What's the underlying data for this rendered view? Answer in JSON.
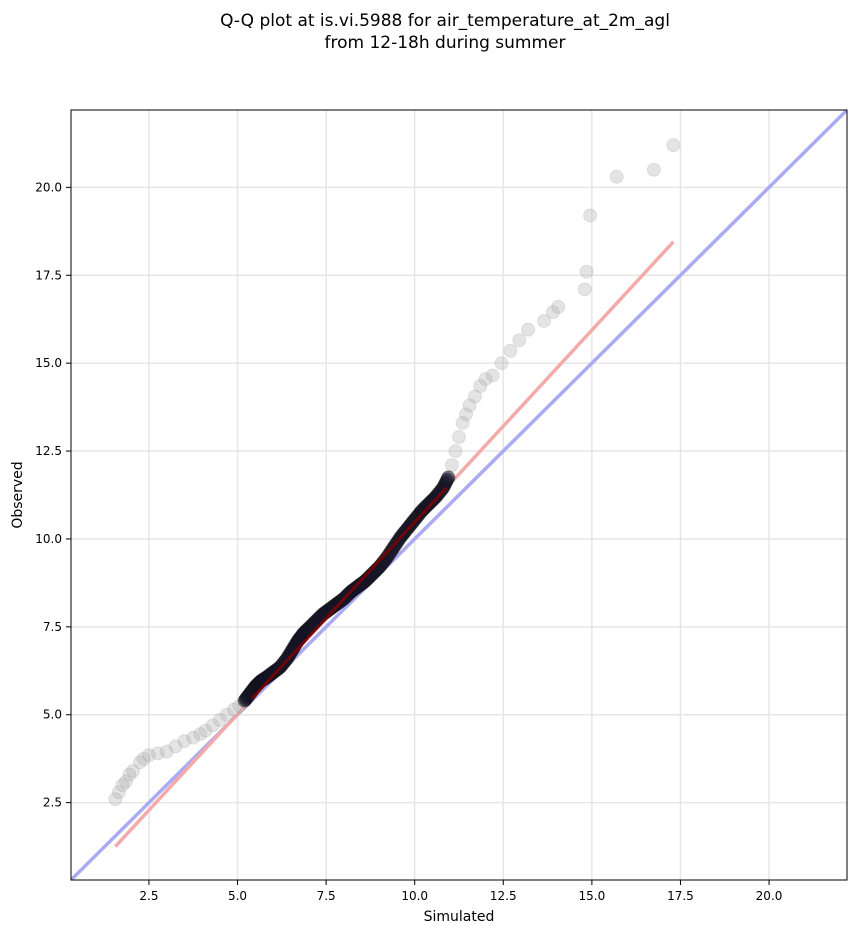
{
  "chart_data": {
    "type": "scatter",
    "title_line1": "Q-Q plot at is.vi.5988 for air_temperature_at_2m_agl",
    "title_line2": "from 12-18h during summer",
    "xlabel": "Simulated",
    "ylabel": "Observed",
    "xlim": [
      0.3,
      22.2
    ],
    "ylim": [
      0.3,
      22.2
    ],
    "xticks": [
      2.5,
      5.0,
      7.5,
      10.0,
      12.5,
      15.0,
      17.5,
      20.0
    ],
    "yticks": [
      2.5,
      5.0,
      7.5,
      10.0,
      12.5,
      15.0,
      17.5,
      20.0
    ],
    "xtick_labels": [
      "2.5",
      "5.0",
      "7.5",
      "10.0",
      "12.5",
      "15.0",
      "17.5",
      "20.0"
    ],
    "ytick_labels": [
      "2.5",
      "5.0",
      "7.5",
      "10.0",
      "12.5",
      "15.0",
      "17.5",
      "20.0"
    ],
    "grid": true,
    "identity_line_color": "#aaaaf5",
    "fit_line_color": "#f5aaaa",
    "fit_line": {
      "x": [
        1.55,
        17.3
      ],
      "y": [
        1.25,
        18.45
      ]
    },
    "identity_line": {
      "x": [
        0.3,
        22.2
      ],
      "y": [
        0.3,
        22.2
      ]
    },
    "qq_points": {
      "x": [
        1.55,
        1.65,
        1.75,
        1.85,
        1.95,
        2.05,
        2.25,
        2.35,
        2.5,
        2.75,
        3.0,
        3.25,
        3.5,
        3.75,
        3.95,
        4.1,
        4.3,
        4.5,
        4.7,
        4.9,
        5.05,
        5.2,
        5.35,
        5.5,
        5.65,
        5.8,
        6.0,
        6.2,
        6.4,
        6.55,
        6.7,
        6.85,
        7.0,
        7.2,
        7.4,
        7.6,
        7.8,
        8.0,
        8.2,
        8.4,
        8.6,
        8.8,
        9.0,
        9.2,
        9.4,
        9.6,
        9.8,
        10.0,
        10.2,
        10.4,
        10.6,
        10.8,
        10.95,
        11.05,
        11.15,
        11.25,
        11.35,
        11.45,
        11.55,
        11.7,
        11.85,
        12.0,
        12.2,
        12.45,
        12.7,
        12.95,
        13.2,
        13.65,
        13.9,
        14.05,
        14.8,
        14.85,
        14.95,
        15.7,
        16.75,
        17.3
      ],
      "y": [
        2.6,
        2.8,
        3.0,
        3.1,
        3.3,
        3.4,
        3.65,
        3.75,
        3.85,
        3.9,
        3.95,
        4.1,
        4.25,
        4.35,
        4.45,
        4.55,
        4.7,
        4.85,
        5.0,
        5.15,
        5.25,
        5.4,
        5.6,
        5.8,
        5.95,
        6.05,
        6.2,
        6.35,
        6.6,
        6.85,
        7.1,
        7.3,
        7.45,
        7.65,
        7.85,
        8.0,
        8.15,
        8.3,
        8.5,
        8.65,
        8.8,
        9.0,
        9.2,
        9.45,
        9.75,
        10.05,
        10.3,
        10.55,
        10.8,
        11.0,
        11.2,
        11.45,
        11.75,
        12.1,
        12.5,
        12.9,
        13.3,
        13.55,
        13.8,
        14.05,
        14.35,
        14.55,
        14.65,
        15.0,
        15.35,
        15.65,
        15.95,
        16.2,
        16.45,
        16.6,
        17.1,
        17.6,
        19.2,
        20.3,
        20.5,
        21.2
      ]
    }
  }
}
